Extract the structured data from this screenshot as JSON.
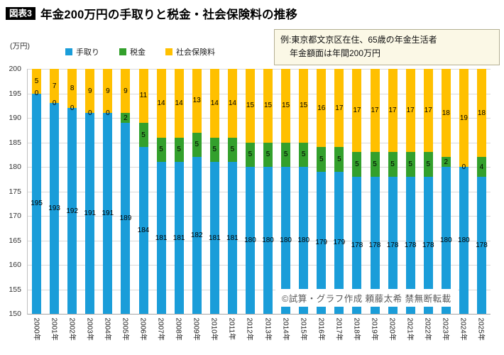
{
  "header": {
    "badge": "図表3",
    "title": "年金200万円の手取りと税金・社会保険料の推移"
  },
  "note": {
    "line1": "例:東京都文京区在住、65歳の年金生活者",
    "line2": "年金額面は年間200万円"
  },
  "watermark": "©試算・グラフ作成 頼藤太希 禁無断転載",
  "chart_data": {
    "type": "bar",
    "subtype": "stacked",
    "unit_label": "(万円)",
    "ylim": [
      150,
      200
    ],
    "ytick_step": 5,
    "grid": true,
    "legend_position": "top",
    "categories": [
      "2000年",
      "2001年",
      "2002年",
      "2003年",
      "2004年",
      "2005年",
      "2006年",
      "2007年",
      "2008年",
      "2009年",
      "2010年",
      "2011年",
      "2012年",
      "2013年",
      "2014年",
      "2015年",
      "2016年",
      "2017年",
      "2018年",
      "2019年",
      "2020年",
      "2021年",
      "2022年",
      "2023年",
      "2024年",
      "2025年"
    ],
    "series": [
      {
        "name": "手取り",
        "color": "#1a9dd9",
        "values": [
          195,
          193,
          192,
          191,
          191,
          189,
          184,
          181,
          181,
          182,
          181,
          181,
          180,
          180,
          180,
          180,
          179,
          179,
          178,
          178,
          178,
          178,
          178,
          180,
          180,
          178
        ]
      },
      {
        "name": "税金",
        "color": "#33a02c",
        "values": [
          0,
          0,
          0,
          0,
          0,
          2,
          5,
          5,
          5,
          5,
          5,
          5,
          5,
          5,
          5,
          5,
          5,
          5,
          5,
          5,
          5,
          5,
          5,
          2,
          0,
          4
        ]
      },
      {
        "name": "社会保険料",
        "color": "#ffc000",
        "values": [
          5,
          7,
          8,
          9,
          9,
          9,
          11,
          14,
          14,
          13,
          14,
          14,
          15,
          15,
          15,
          15,
          16,
          17,
          17,
          17,
          17,
          17,
          17,
          18,
          19,
          18
        ]
      }
    ]
  }
}
